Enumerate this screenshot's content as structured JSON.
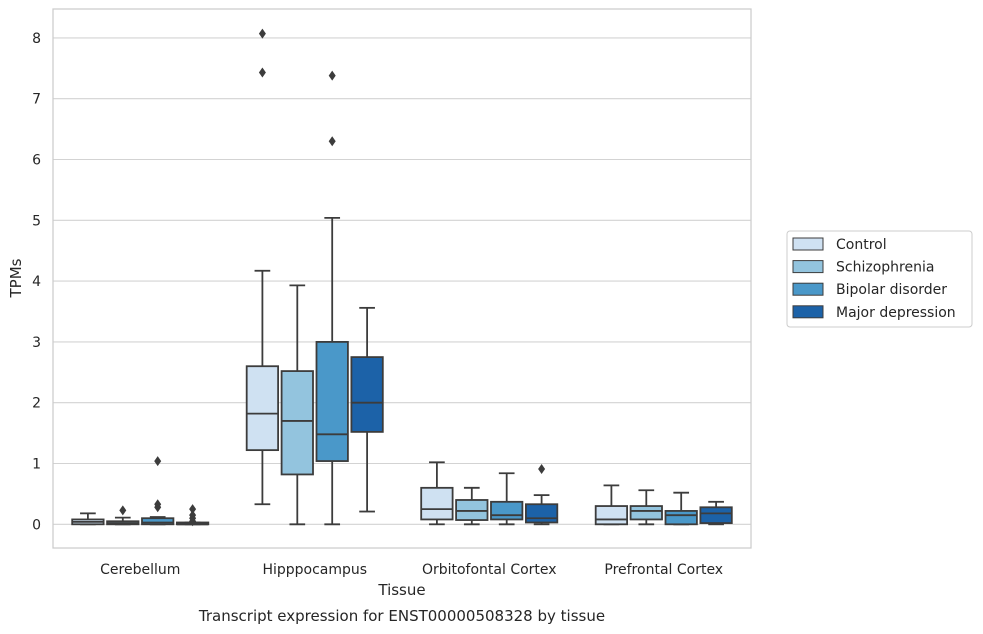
{
  "caption": "Transcript expression for ENST00000508328 by tissue",
  "chart_data": {
    "type": "box",
    "xlabel": "Tissue",
    "ylabel": "TPMs",
    "ylim": [
      -0.4,
      8.5
    ],
    "yticks": [
      0,
      1,
      2,
      3,
      4,
      5,
      6,
      7,
      8
    ],
    "grid": true,
    "legend_placement": "right",
    "categories": [
      "Cerebellum",
      "Hipppocampus",
      "Orbitofontal Cortex",
      "Prefrontal Cortex"
    ],
    "series": [
      {
        "name": "Control",
        "color": "#cfe1f2",
        "boxes": [
          {
            "whislo": 0.0,
            "q1": 0.0,
            "med": 0.04,
            "q3": 0.08,
            "whishi": 0.18,
            "fliers": []
          },
          {
            "whislo": 0.33,
            "q1": 1.22,
            "med": 1.82,
            "q3": 2.6,
            "whishi": 4.17,
            "fliers": [
              7.43,
              8.07
            ]
          },
          {
            "whislo": 0.0,
            "q1": 0.08,
            "med": 0.25,
            "q3": 0.6,
            "whishi": 1.02,
            "fliers": []
          },
          {
            "whislo": 0.0,
            "q1": 0.0,
            "med": 0.08,
            "q3": 0.3,
            "whishi": 0.64,
            "fliers": []
          }
        ]
      },
      {
        "name": "Schizophrenia",
        "color": "#93c4de",
        "boxes": [
          {
            "whislo": 0.0,
            "q1": 0.0,
            "med": 0.02,
            "q3": 0.05,
            "whishi": 0.11,
            "fliers": [
              0.23
            ]
          },
          {
            "whislo": 0.0,
            "q1": 0.82,
            "med": 1.7,
            "q3": 2.52,
            "whishi": 3.93,
            "fliers": []
          },
          {
            "whislo": 0.0,
            "q1": 0.07,
            "med": 0.22,
            "q3": 0.4,
            "whishi": 0.6,
            "fliers": []
          },
          {
            "whislo": 0.0,
            "q1": 0.08,
            "med": 0.22,
            "q3": 0.3,
            "whishi": 0.56,
            "fliers": []
          }
        ]
      },
      {
        "name": "Bipolar disorder",
        "color": "#4a98c9",
        "boxes": [
          {
            "whislo": 0.0,
            "q1": 0.0,
            "med": 0.03,
            "q3": 0.1,
            "whishi": 0.12,
            "fliers": [
              0.28,
              0.33,
              1.04
            ]
          },
          {
            "whislo": 0.0,
            "q1": 1.04,
            "med": 1.48,
            "q3": 3.0,
            "whishi": 5.04,
            "fliers": [
              6.3,
              7.38
            ]
          },
          {
            "whislo": 0.0,
            "q1": 0.08,
            "med": 0.15,
            "q3": 0.37,
            "whishi": 0.84,
            "fliers": []
          },
          {
            "whislo": 0.0,
            "q1": 0.0,
            "med": 0.15,
            "q3": 0.22,
            "whishi": 0.52,
            "fliers": []
          }
        ]
      },
      {
        "name": "Major depression",
        "color": "#1c62a8",
        "boxes": [
          {
            "whislo": 0.0,
            "q1": 0.0,
            "med": 0.0,
            "q3": 0.03,
            "whishi": 0.03,
            "fliers": [
              0.05,
              0.1,
              0.15,
              0.25
            ]
          },
          {
            "whislo": 0.21,
            "q1": 1.52,
            "med": 2.0,
            "q3": 2.75,
            "whishi": 3.56,
            "fliers": []
          },
          {
            "whislo": 0.0,
            "q1": 0.03,
            "med": 0.1,
            "q3": 0.33,
            "whishi": 0.48,
            "fliers": [
              0.91
            ]
          },
          {
            "whislo": 0.0,
            "q1": 0.02,
            "med": 0.18,
            "q3": 0.28,
            "whishi": 0.37,
            "fliers": []
          }
        ]
      }
    ]
  }
}
